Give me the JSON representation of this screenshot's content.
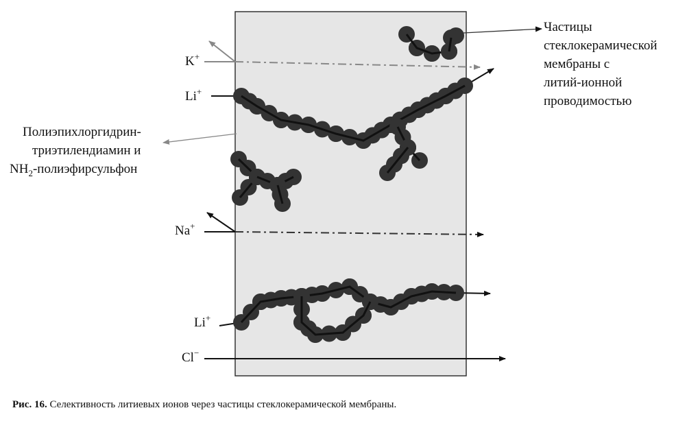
{
  "labels": {
    "particles": [
      "Частицы",
      "стеклокерамической",
      "мембраны с",
      "литий-ионной",
      "проводимостью"
    ],
    "polymer": {
      "line1": "Полиэпихлоргидрин-",
      "line2": "триэтилендиамин и",
      "line3": {
        "base": "NH",
        "sub": "2",
        "rest": "-полиэфирсульфон"
      }
    },
    "ions": [
      {
        "symbol": "K",
        "charge": "+"
      },
      {
        "symbol": "Li",
        "charge": "+"
      },
      {
        "symbol": "Na",
        "charge": "+"
      },
      {
        "symbol": "Li",
        "charge": "+"
      },
      {
        "symbol": "Cl",
        "charge": "−"
      }
    ]
  },
  "caption": {
    "number": "Рис. 16.",
    "text": "Селективность литиевых ионов через частицы стеклокерамической мембраны."
  }
}
